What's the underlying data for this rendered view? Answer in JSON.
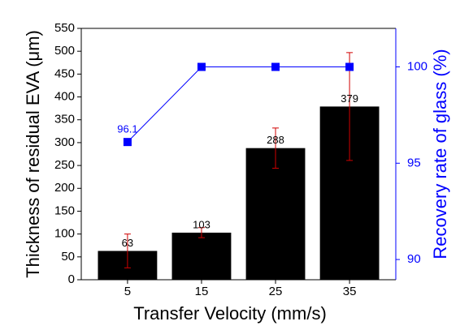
{
  "chart_data": {
    "type": "bar",
    "x": [
      5,
      15,
      25,
      35
    ],
    "xlim": [
      -1.25,
      41.25
    ],
    "xticks": [
      5,
      15,
      25,
      35
    ],
    "xlabel": "Transfer Velocity (mm/s)",
    "ylabel": "Thickness of residual EVA (μm)",
    "ylim": [
      0,
      550
    ],
    "yticks": [
      0,
      50,
      100,
      150,
      200,
      250,
      300,
      350,
      400,
      450,
      500,
      550
    ],
    "y2label": "Recovery rate of glass (%)",
    "y2lim": [
      88.95,
      102
    ],
    "y2ticks": [
      90,
      95,
      100
    ],
    "bar_width": 8,
    "series": [
      {
        "type": "bar",
        "color": "#000000",
        "error_color": "#d00000",
        "values": [
          63,
          103,
          288,
          379
        ],
        "errors": [
          37,
          11,
          44,
          118
        ]
      },
      {
        "type": "line",
        "axis": "y2",
        "color": "#0000ff",
        "values": [
          96.1,
          100,
          100,
          100
        ],
        "value_labels": [
          "96.1",
          null,
          null,
          null
        ]
      }
    ]
  }
}
